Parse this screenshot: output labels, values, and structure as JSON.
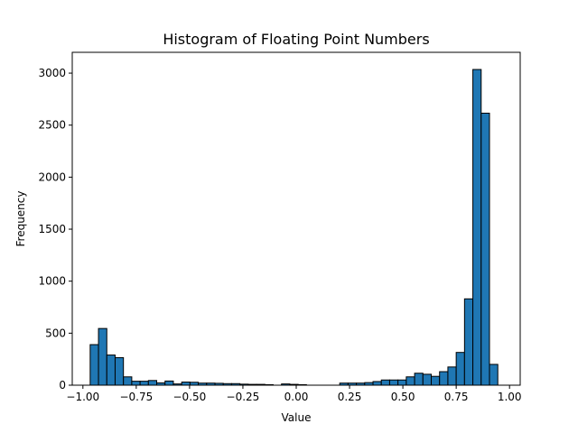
{
  "chart_data": {
    "type": "bar",
    "title": "Histogram of Floating Point Numbers",
    "xlabel": "Value",
    "ylabel": "Frequency",
    "xlim": [
      -1.05,
      1.05
    ],
    "ylim": [
      0,
      3200
    ],
    "xticks": [
      -1.0,
      -0.75,
      -0.5,
      -0.25,
      0.0,
      0.25,
      0.5,
      0.75,
      1.0
    ],
    "xtick_labels": [
      "−1.00",
      "−0.75",
      "−0.50",
      "−0.25",
      "0.00",
      "0.25",
      "0.50",
      "0.75",
      "1.00"
    ],
    "yticks": [
      0,
      500,
      1000,
      1500,
      2000,
      2500,
      3000
    ],
    "ytick_labels": [
      "0",
      "500",
      "1000",
      "1500",
      "2000",
      "2500",
      "3000"
    ],
    "bins": {
      "edges": [
        -0.966,
        -0.927,
        -0.888,
        -0.849,
        -0.81,
        -0.771,
        -0.732,
        -0.693,
        -0.654,
        -0.615,
        -0.576,
        -0.537,
        -0.498,
        -0.459,
        -0.42,
        -0.381,
        -0.342,
        -0.303,
        -0.264,
        -0.225,
        -0.186,
        -0.147,
        -0.108,
        -0.069,
        -0.03,
        0.009,
        0.048,
        0.087,
        0.126,
        0.165,
        0.204,
        0.243,
        0.282,
        0.321,
        0.36,
        0.399,
        0.438,
        0.477,
        0.516,
        0.555,
        0.594,
        0.633,
        0.672,
        0.711,
        0.75,
        0.789,
        0.828,
        0.867,
        0.906,
        0.945,
        0.984
      ],
      "counts": [
        390,
        545,
        290,
        265,
        80,
        38,
        38,
        45,
        22,
        40,
        12,
        30,
        28,
        20,
        20,
        18,
        15,
        15,
        10,
        8,
        8,
        5,
        0,
        12,
        8,
        5,
        0,
        0,
        0,
        0,
        20,
        20,
        20,
        25,
        35,
        50,
        50,
        50,
        80,
        115,
        105,
        85,
        130,
        175,
        315,
        830,
        3035,
        2615,
        200,
        0
      ]
    }
  }
}
